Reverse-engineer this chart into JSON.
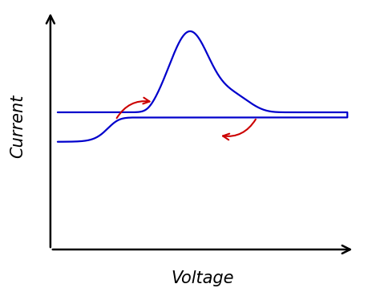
{
  "title": "",
  "xlabel": "Voltage",
  "ylabel": "Current",
  "line_color": "#0000cc",
  "arrow_color": "#cc0000",
  "background_color": "#ffffff",
  "xlabel_fontsize": 15,
  "ylabel_fontsize": 15,
  "figsize": [
    4.6,
    3.59
  ],
  "dpi": 100
}
